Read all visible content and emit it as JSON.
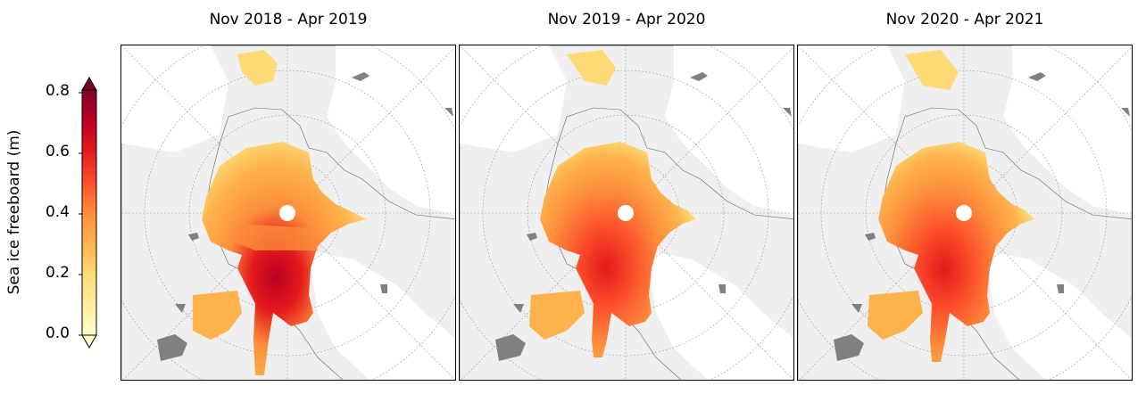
{
  "colorbar": {
    "label": "Sea ice freeboard (m)",
    "ticks": [
      "0.0",
      "0.2",
      "0.4",
      "0.6",
      "0.8"
    ],
    "colors": [
      "#ffffcc",
      "#ffeda0",
      "#fed976",
      "#feb24c",
      "#fd8d3c",
      "#fc4e2a",
      "#e31a1c",
      "#bd0026",
      "#800026"
    ]
  },
  "panels": [
    {
      "title": "Nov 2018 - Apr 2019"
    },
    {
      "title": "Nov 2019 - Apr 2020"
    },
    {
      "title": "Nov 2020 - Apr 2021"
    }
  ],
  "map_colors": {
    "land": "#efefef",
    "ocean": "#ffffff",
    "coast": "#666666",
    "lakes": "#808080",
    "grid": "#999999"
  }
}
